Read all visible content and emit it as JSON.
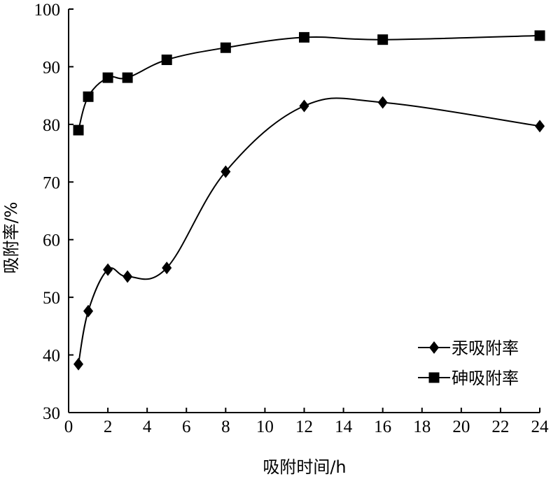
{
  "chart_data": {
    "type": "line",
    "xlabel": "吸附时间/h",
    "ylabel": "吸附率/%",
    "xlim": [
      0,
      24
    ],
    "ylim": [
      30,
      100
    ],
    "x_ticks": [
      0,
      2,
      4,
      6,
      8,
      10,
      12,
      14,
      16,
      18,
      20,
      22,
      24
    ],
    "y_ticks": [
      30,
      40,
      50,
      60,
      70,
      80,
      90,
      100
    ],
    "grid": false,
    "legend_position": "bottom-right",
    "series": [
      {
        "name": "汞吸附率",
        "marker": "diamond",
        "smooth": true,
        "x": [
          0.5,
          1,
          2,
          3,
          5,
          8,
          12,
          16,
          24
        ],
        "y": [
          38.4,
          47.6,
          54.8,
          53.6,
          55.1,
          71.8,
          83.2,
          83.8,
          79.7
        ]
      },
      {
        "name": "砷吸附率",
        "marker": "square",
        "smooth": true,
        "x": [
          0.5,
          1,
          2,
          3,
          5,
          8,
          12,
          16,
          24
        ],
        "y": [
          79.0,
          84.8,
          88.1,
          88.1,
          91.2,
          93.3,
          95.1,
          94.7,
          95.4
        ]
      }
    ]
  }
}
